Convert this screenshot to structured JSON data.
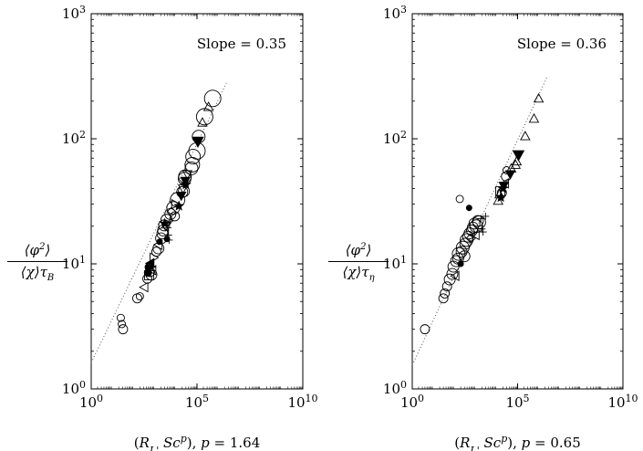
{
  "chart_data": [
    {
      "type": "scatter",
      "xscale": "log",
      "yscale": "log",
      "xlim": [
        1,
        10000000000
      ],
      "ylim": [
        1,
        1000
      ],
      "xticks": [
        {
          "value": 1,
          "base": "10",
          "exp": "0"
        },
        {
          "value": 100000,
          "base": "10",
          "exp": "5"
        },
        {
          "value": 10000000000,
          "base": "10",
          "exp": "10"
        }
      ],
      "yticks": [
        {
          "value": 1,
          "base": "10",
          "exp": "0"
        },
        {
          "value": 10,
          "base": "10",
          "exp": "1"
        },
        {
          "value": 100,
          "base": "10",
          "exp": "2"
        },
        {
          "value": 1000,
          "base": "10",
          "exp": "3"
        }
      ],
      "xlabel": "(R_L' Sc^p), p = 1.64",
      "ylabel": "⟨φ²⟩ / ⟨χ⟩τ_B",
      "fit_line": {
        "slope": 0.35,
        "intercept_at_x1": 1.62,
        "x_range": [
          1,
          2500000
        ],
        "style": "dotted",
        "label": "Slope = 0.35"
      },
      "points": [
        {
          "x": 25,
          "y": 3.7,
          "m": "circle",
          "s": 4
        },
        {
          "x": 28,
          "y": 3.3,
          "m": "circle",
          "s": 4
        },
        {
          "x": 32,
          "y": 3.0,
          "m": "circle",
          "s": 5
        },
        {
          "x": 150,
          "y": 5.3,
          "m": "circle",
          "s": 5
        },
        {
          "x": 200,
          "y": 5.5,
          "m": "circle",
          "s": 4
        },
        {
          "x": 320,
          "y": 6.5,
          "m": "tri-left",
          "s": 5
        },
        {
          "x": 450,
          "y": 7.6,
          "m": "circle",
          "s": 5
        },
        {
          "x": 480,
          "y": 8.5,
          "m": "filled-circle",
          "s": 4
        },
        {
          "x": 520,
          "y": 9.4,
          "m": "filled-circle",
          "s": 4
        },
        {
          "x": 550,
          "y": 8.1,
          "m": "square",
          "s": 5
        },
        {
          "x": 600,
          "y": 8.6,
          "m": "circle",
          "s": 5
        },
        {
          "x": 620,
          "y": 10.1,
          "m": "filled-tri-left",
          "s": 5
        },
        {
          "x": 700,
          "y": 8.2,
          "m": "circle",
          "s": 6
        },
        {
          "x": 760,
          "y": 8.9,
          "m": "tri-left",
          "s": 5
        },
        {
          "x": 800,
          "y": 9.4,
          "m": "plus",
          "s": 4
        },
        {
          "x": 900,
          "y": 11.2,
          "m": "tri-right",
          "s": 5
        },
        {
          "x": 1200,
          "y": 12.5,
          "m": "circle",
          "s": 5
        },
        {
          "x": 1500,
          "y": 13.3,
          "m": "circle",
          "s": 6
        },
        {
          "x": 1500,
          "y": 14.2,
          "m": "tri-left",
          "s": 5
        },
        {
          "x": 1700,
          "y": 15.0,
          "m": "filled-circle",
          "s": 3
        },
        {
          "x": 2000,
          "y": 16.0,
          "m": "circle",
          "s": 6
        },
        {
          "x": 2300,
          "y": 17.5,
          "m": "circle",
          "s": 6
        },
        {
          "x": 2500,
          "y": 18.5,
          "m": "circle",
          "s": 6
        },
        {
          "x": 2800,
          "y": 20.3,
          "m": "circle",
          "s": 6
        },
        {
          "x": 3000,
          "y": 21.0,
          "m": "star",
          "s": 5
        },
        {
          "x": 3300,
          "y": 20.0,
          "m": "tri-down",
          "s": 5
        },
        {
          "x": 3600,
          "y": 22.5,
          "m": "circle",
          "s": 6
        },
        {
          "x": 4200,
          "y": 19.5,
          "m": "plus",
          "s": 4
        },
        {
          "x": 4500,
          "y": 17.0,
          "m": "plus",
          "s": 4
        },
        {
          "x": 4800,
          "y": 15.5,
          "m": "plus",
          "s": 4
        },
        {
          "x": 5200,
          "y": 22.0,
          "m": "plus",
          "s": 4
        },
        {
          "x": 3800,
          "y": 15.8,
          "m": "filled-circle",
          "s": 3
        },
        {
          "x": 5500,
          "y": 25.0,
          "m": "circle",
          "s": 6
        },
        {
          "x": 6200,
          "y": 26.0,
          "m": "diamond",
          "s": 5
        },
        {
          "x": 7500,
          "y": 28.0,
          "m": "circle",
          "s": 7
        },
        {
          "x": 9000,
          "y": 24.0,
          "m": "circle",
          "s": 5
        },
        {
          "x": 9500,
          "y": 30.0,
          "m": "tri-right",
          "s": 5
        },
        {
          "x": 12000,
          "y": 32.5,
          "m": "circle",
          "s": 8
        },
        {
          "x": 14000,
          "y": 29.0,
          "m": "star",
          "s": 5
        },
        {
          "x": 18000,
          "y": 35.0,
          "m": "filled-tri-down",
          "s": 5
        },
        {
          "x": 20000,
          "y": 37.5,
          "m": "circle",
          "s": 6
        },
        {
          "x": 22000,
          "y": 40.0,
          "m": "tri-down",
          "s": 5
        },
        {
          "x": 24000,
          "y": 38.0,
          "m": "circle",
          "s": 6
        },
        {
          "x": 26000,
          "y": 48.0,
          "m": "circle",
          "s": 7
        },
        {
          "x": 28000,
          "y": 46.0,
          "m": "filled-tri-down",
          "s": 5
        },
        {
          "x": 30000,
          "y": 43.0,
          "m": "star",
          "s": 5
        },
        {
          "x": 27000,
          "y": 50.0,
          "m": "circle",
          "s": 7
        },
        {
          "x": 35000,
          "y": 52.0,
          "m": "tri-down",
          "s": 5
        },
        {
          "x": 55000,
          "y": 58.0,
          "m": "circle",
          "s": 7
        },
        {
          "x": 60000,
          "y": 62.0,
          "m": "circle",
          "s": 8
        },
        {
          "x": 65000,
          "y": 72.0,
          "m": "circle",
          "s": 8
        },
        {
          "x": 100000,
          "y": 80.0,
          "m": "circle",
          "s": 9
        },
        {
          "x": 110000,
          "y": 95.0,
          "m": "filled-tri-down",
          "s": 6
        },
        {
          "x": 120000,
          "y": 104.0,
          "m": "circle",
          "s": 7
        },
        {
          "x": 180000,
          "y": 135.0,
          "m": "tri-up",
          "s": 5
        },
        {
          "x": 230000,
          "y": 150.0,
          "m": "circle",
          "s": 9
        },
        {
          "x": 350000,
          "y": 180.0,
          "m": "tri-up",
          "s": 5
        },
        {
          "x": 550000,
          "y": 210.0,
          "m": "circle",
          "s": 9
        }
      ]
    },
    {
      "type": "scatter",
      "xscale": "log",
      "yscale": "log",
      "xlim": [
        1,
        10000000000
      ],
      "ylim": [
        1,
        1000
      ],
      "xticks": [
        {
          "value": 1,
          "base": "10",
          "exp": "0"
        },
        {
          "value": 100000,
          "base": "10",
          "exp": "5"
        },
        {
          "value": 10000000000,
          "base": "10",
          "exp": "10"
        }
      ],
      "yticks": [
        {
          "value": 1,
          "base": "10",
          "exp": "0"
        },
        {
          "value": 10,
          "base": "10",
          "exp": "1"
        },
        {
          "value": 100,
          "base": "10",
          "exp": "2"
        },
        {
          "value": 1000,
          "base": "10",
          "exp": "3"
        }
      ],
      "xlabel": "(R_L' Sc^p), p = 0.65",
      "ylabel": "⟨φ²⟩ / ⟨χ⟩τ_η",
      "fit_line": {
        "slope": 0.36,
        "intercept_at_x1": 1.55,
        "x_range": [
          1,
          2500000
        ],
        "style": "dotted",
        "label": "Slope = 0.36"
      },
      "points": [
        {
          "x": 4,
          "y": 3.0,
          "m": "circle",
          "s": 5
        },
        {
          "x": 30,
          "y": 5.3,
          "m": "circle",
          "s": 5
        },
        {
          "x": 35,
          "y": 5.8,
          "m": "circle",
          "s": 5
        },
        {
          "x": 45,
          "y": 6.6,
          "m": "circle",
          "s": 5
        },
        {
          "x": 60,
          "y": 7.5,
          "m": "circle",
          "s": 6
        },
        {
          "x": 80,
          "y": 8.3,
          "m": "circle",
          "s": 6
        },
        {
          "x": 90,
          "y": 9.5,
          "m": "circle",
          "s": 6
        },
        {
          "x": 110,
          "y": 8.0,
          "m": "tri-left",
          "s": 5
        },
        {
          "x": 120,
          "y": 10.5,
          "m": "circle",
          "s": 6
        },
        {
          "x": 150,
          "y": 11.0,
          "m": "circle",
          "s": 6
        },
        {
          "x": 160,
          "y": 12.0,
          "m": "circle",
          "s": 7
        },
        {
          "x": 200,
          "y": 10.0,
          "m": "filled-circle",
          "s": 3
        },
        {
          "x": 220,
          "y": 12.5,
          "m": "circle",
          "s": 6
        },
        {
          "x": 250,
          "y": 13.5,
          "m": "circle",
          "s": 7
        },
        {
          "x": 300,
          "y": 11.5,
          "m": "circle",
          "s": 6
        },
        {
          "x": 330,
          "y": 14.5,
          "m": "circle",
          "s": 6
        },
        {
          "x": 380,
          "y": 15.5,
          "m": "circle",
          "s": 7
        },
        {
          "x": 450,
          "y": 16.5,
          "m": "circle",
          "s": 6
        },
        {
          "x": 520,
          "y": 17.5,
          "m": "circle",
          "s": 6
        },
        {
          "x": 600,
          "y": 16.0,
          "m": "diamond",
          "s": 5
        },
        {
          "x": 680,
          "y": 18.5,
          "m": "circle",
          "s": 6
        },
        {
          "x": 750,
          "y": 19.5,
          "m": "circle",
          "s": 6
        },
        {
          "x": 900,
          "y": 21.0,
          "m": "circle",
          "s": 6
        },
        {
          "x": 1000,
          "y": 17.0,
          "m": "tri-left",
          "s": 5
        },
        {
          "x": 1100,
          "y": 20.0,
          "m": "circle",
          "s": 7
        },
        {
          "x": 1300,
          "y": 22.0,
          "m": "circle",
          "s": 6
        },
        {
          "x": 1500,
          "y": 21.5,
          "m": "circle",
          "s": 7
        },
        {
          "x": 1800,
          "y": 23.0,
          "m": "plus",
          "s": 4
        },
        {
          "x": 2000,
          "y": 19.0,
          "m": "plus",
          "s": 4
        },
        {
          "x": 2300,
          "y": 18.0,
          "m": "plus",
          "s": 4
        },
        {
          "x": 3000,
          "y": 24.0,
          "m": "plus",
          "s": 4
        },
        {
          "x": 500,
          "y": 28.0,
          "m": "filled-circle",
          "s": 3
        },
        {
          "x": 180,
          "y": 33.0,
          "m": "circle",
          "s": 4
        },
        {
          "x": 12000,
          "y": 32.0,
          "m": "tri-up",
          "s": 5
        },
        {
          "x": 14000,
          "y": 36.0,
          "m": "tri-up",
          "s": 5
        },
        {
          "x": 16000,
          "y": 34.0,
          "m": "star",
          "s": 5
        },
        {
          "x": 15000,
          "y": 38.0,
          "m": "square",
          "s": 5
        },
        {
          "x": 18000,
          "y": 37.0,
          "m": "circle",
          "s": 5
        },
        {
          "x": 20000,
          "y": 40.0,
          "m": "star",
          "s": 5
        },
        {
          "x": 22000,
          "y": 42.0,
          "m": "filled-tri-down",
          "s": 5
        },
        {
          "x": 25000,
          "y": 44.0,
          "m": "tri-left",
          "s": 5
        },
        {
          "x": 28000,
          "y": 50.0,
          "m": "circle",
          "s": 5
        },
        {
          "x": 30000,
          "y": 56.0,
          "m": "circle",
          "s": 4
        },
        {
          "x": 45000,
          "y": 52.0,
          "m": "filled-tri-down",
          "s": 5
        },
        {
          "x": 50000,
          "y": 58.0,
          "m": "tri-up",
          "s": 5
        },
        {
          "x": 80000,
          "y": 62.0,
          "m": "tri-up",
          "s": 5
        },
        {
          "x": 90000,
          "y": 66.0,
          "m": "tri-up",
          "s": 5
        },
        {
          "x": 110000,
          "y": 74.0,
          "m": "filled-tri-down",
          "s": 6
        },
        {
          "x": 230000,
          "y": 105.0,
          "m": "tri-up",
          "s": 5
        },
        {
          "x": 600000,
          "y": 145.0,
          "m": "tri-up",
          "s": 5
        },
        {
          "x": 1000000,
          "y": 210.0,
          "m": "tri-up",
          "s": 5
        }
      ]
    }
  ]
}
